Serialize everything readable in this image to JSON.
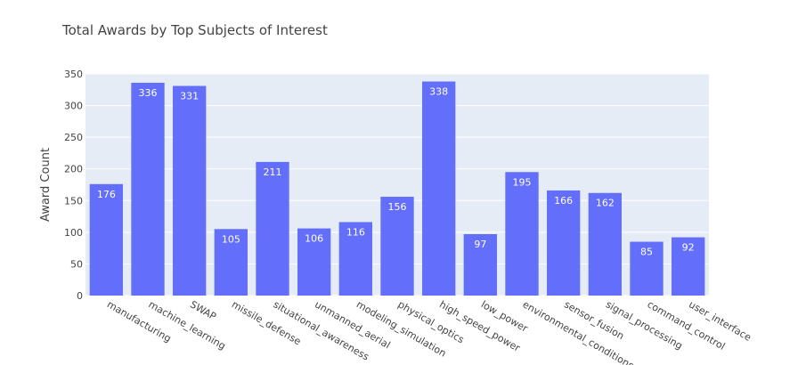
{
  "chart_data": {
    "type": "bar",
    "title": "Total Awards by Top Subjects of Interest",
    "xlabel": "",
    "ylabel": "Award Count",
    "ylim": [
      0,
      350
    ],
    "yticks": [
      0,
      50,
      100,
      150,
      200,
      250,
      300,
      350
    ],
    "grid": true,
    "legend": "none",
    "categories": [
      "manufacturing",
      "machine_learning",
      "SWAP",
      "missile_defense",
      "situational_awareness",
      "unmanned_aerial",
      "modeling_simulation",
      "physical_optics",
      "high_speed_power",
      "low_power",
      "environmental_conditions",
      "sensor_fusion",
      "signal_processing",
      "command_control",
      "user_interface"
    ],
    "values": [
      176,
      336,
      331,
      105,
      211,
      106,
      116,
      156,
      338,
      97,
      195,
      166,
      162,
      85,
      92
    ]
  },
  "colors": {
    "bar": "#636efa",
    "plot_bg": "#e5ecf6",
    "grid": "#ffffff",
    "text": "#444444"
  }
}
